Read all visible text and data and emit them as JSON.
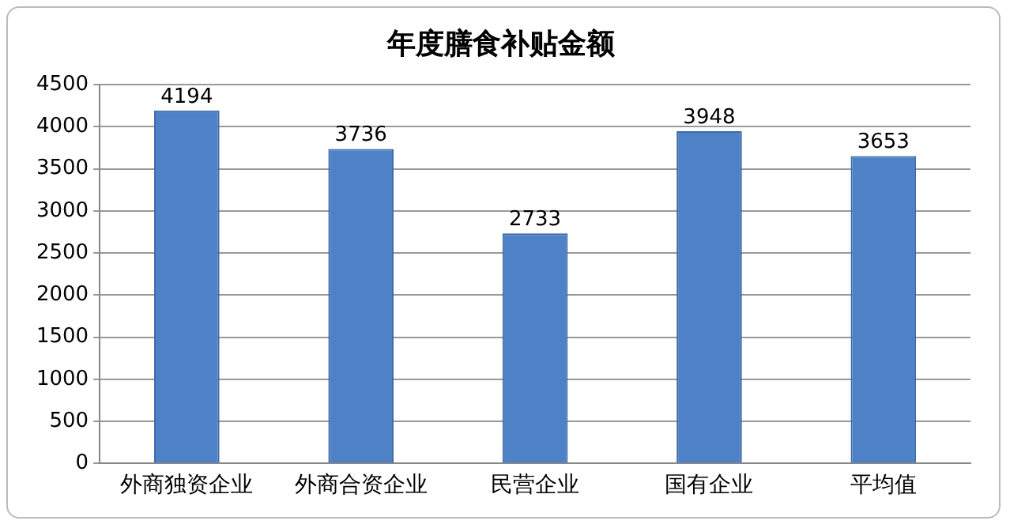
{
  "chart_data": {
    "type": "bar",
    "title": "年度膳食补贴金额",
    "categories": [
      "外商独资企业",
      "外商合资企业",
      "民营企业",
      "国有企业",
      "平均值"
    ],
    "values": [
      4194,
      3736,
      2733,
      3948,
      3653
    ],
    "color": "#4f81c7",
    "ylim": [
      0,
      4500
    ],
    "yticks": [
      0,
      500,
      1000,
      1500,
      2000,
      2500,
      3000,
      3500,
      4000,
      4500
    ],
    "grid": "y",
    "data_labels": true
  }
}
